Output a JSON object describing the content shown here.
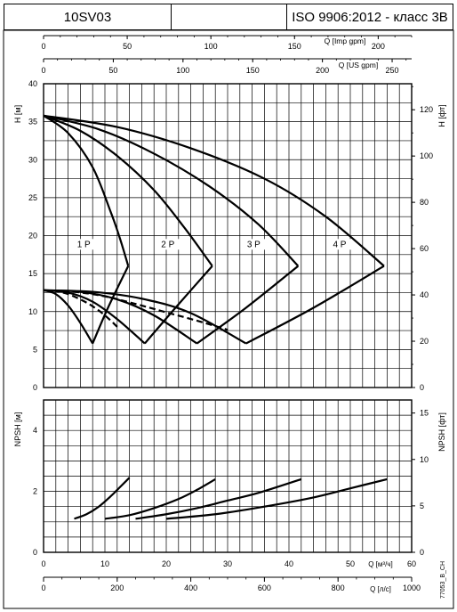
{
  "header": {
    "model": "10SV03",
    "middle": "",
    "standard": "ISO 9906:2012 - класс 3B"
  },
  "footer_code": "77053_B_CH",
  "chart_data": [
    {
      "type": "line",
      "name": "head",
      "xlabel": "Q [м³/ч]",
      "ylabel": "H [м]",
      "ylabel_right": "H [фт]",
      "xlim": [
        0,
        60
      ],
      "ylim": [
        0,
        40
      ],
      "y_ticks": [
        0,
        5,
        10,
        15,
        20,
        25,
        30,
        35,
        40
      ],
      "right_ticks_ft": [
        0,
        20,
        40,
        60,
        80,
        100,
        120
      ],
      "grid": true,
      "top_axes": [
        {
          "label": "Q [Imp gpm]",
          "ticks": [
            0,
            50,
            100,
            150,
            200
          ],
          "max": 220
        },
        {
          "label": "Q [US gpm]",
          "ticks": [
            0,
            50,
            100,
            150,
            200,
            250
          ],
          "max": 264
        }
      ],
      "series": [
        {
          "name": "1 P",
          "style": "solid",
          "x": [
            0,
            4,
            8,
            11,
            12.5,
            13.8
          ],
          "y": [
            35.8,
            33.5,
            29,
            23,
            19.5,
            16
          ]
        },
        {
          "name": "2 P",
          "style": "solid",
          "x": [
            0,
            6,
            12,
            18,
            23,
            27.5
          ],
          "y": [
            35.8,
            33.8,
            30.5,
            26,
            21,
            16
          ]
        },
        {
          "name": "3 P",
          "style": "solid",
          "x": [
            0,
            9,
            18,
            27,
            35,
            41.5
          ],
          "y": [
            35.8,
            34,
            30.8,
            26.5,
            21.5,
            16
          ]
        },
        {
          "name": "4 P",
          "style": "solid",
          "x": [
            0,
            12,
            24,
            36,
            46,
            55.5
          ],
          "y": [
            35.8,
            34.3,
            31.5,
            27.5,
            22.5,
            16
          ]
        },
        {
          "name": "",
          "style": "solid",
          "x": [
            0,
            2,
            4,
            6,
            8
          ],
          "y": [
            12.8,
            12.3,
            10.8,
            8.5,
            5.8
          ]
        },
        {
          "name": "",
          "style": "solid",
          "x": [
            0,
            4,
            8,
            12,
            16.5
          ],
          "y": [
            12.8,
            12.5,
            11.3,
            9,
            5.8
          ]
        },
        {
          "name": "",
          "style": "solid",
          "x": [
            0,
            6,
            12,
            18,
            25
          ],
          "y": [
            12.8,
            12.6,
            11.6,
            9.5,
            5.8
          ]
        },
        {
          "name": "",
          "style": "solid",
          "x": [
            0,
            8,
            16,
            24,
            33
          ],
          "y": [
            12.8,
            12.6,
            11.7,
            9.8,
            5.8
          ]
        },
        {
          "name": "",
          "style": "dashed",
          "x": [
            0,
            2,
            4,
            6,
            8,
            10,
            12
          ],
          "y": [
            12.8,
            12.7,
            12.3,
            11.6,
            10.7,
            9.5,
            8
          ]
        },
        {
          "name": "",
          "style": "dashed",
          "x": [
            0,
            5,
            10,
            15,
            20,
            25,
            30
          ],
          "y": [
            12.8,
            12.6,
            12,
            11,
            9.9,
            8.8,
            7.6
          ]
        },
        {
          "name": "",
          "style": "solid",
          "x": [
            8,
            10.5,
            13.8
          ],
          "y": [
            5.8,
            10.5,
            16
          ]
        },
        {
          "name": "",
          "style": "solid",
          "x": [
            16.5,
            21.5,
            27.5
          ],
          "y": [
            5.8,
            10.5,
            16
          ]
        },
        {
          "name": "",
          "style": "solid",
          "x": [
            25,
            33,
            41.5
          ],
          "y": [
            5.8,
            10.5,
            16
          ]
        },
        {
          "name": "",
          "style": "solid",
          "x": [
            33,
            44,
            55.5
          ],
          "y": [
            5.8,
            10.5,
            16
          ]
        }
      ]
    },
    {
      "type": "line",
      "name": "npsh",
      "xlabel": "Q [м³/ч]",
      "xlabel2": "Q [л/с]",
      "ylabel": "NPSH [м]",
      "ylabel_right": "NPSH [фт]",
      "xlim": [
        0,
        60
      ],
      "ylim": [
        0,
        5
      ],
      "x_ticks": [
        0,
        10,
        20,
        30,
        40,
        50,
        60
      ],
      "x2_ticks": [
        0,
        200,
        400,
        600,
        800,
        1000
      ],
      "y_ticks": [
        0,
        2,
        4
      ],
      "right_ticks_ft": [
        0,
        5,
        10,
        15
      ],
      "grid": true,
      "series": [
        {
          "name": "",
          "style": "solid",
          "x": [
            5,
            7,
            9,
            11,
            12.5,
            14
          ],
          "y": [
            1.1,
            1.25,
            1.5,
            1.85,
            2.15,
            2.45
          ]
        },
        {
          "name": "",
          "style": "solid",
          "x": [
            10,
            14,
            18,
            22,
            25,
            28
          ],
          "y": [
            1.1,
            1.22,
            1.45,
            1.75,
            2.05,
            2.4
          ]
        },
        {
          "name": "",
          "style": "solid",
          "x": [
            15,
            20,
            25,
            30,
            35,
            42
          ],
          "y": [
            1.1,
            1.25,
            1.45,
            1.7,
            1.95,
            2.4
          ]
        },
        {
          "name": "",
          "style": "solid",
          "x": [
            20,
            28,
            36,
            44,
            50,
            56
          ],
          "y": [
            1.1,
            1.25,
            1.5,
            1.8,
            2.1,
            2.4
          ]
        }
      ]
    }
  ]
}
